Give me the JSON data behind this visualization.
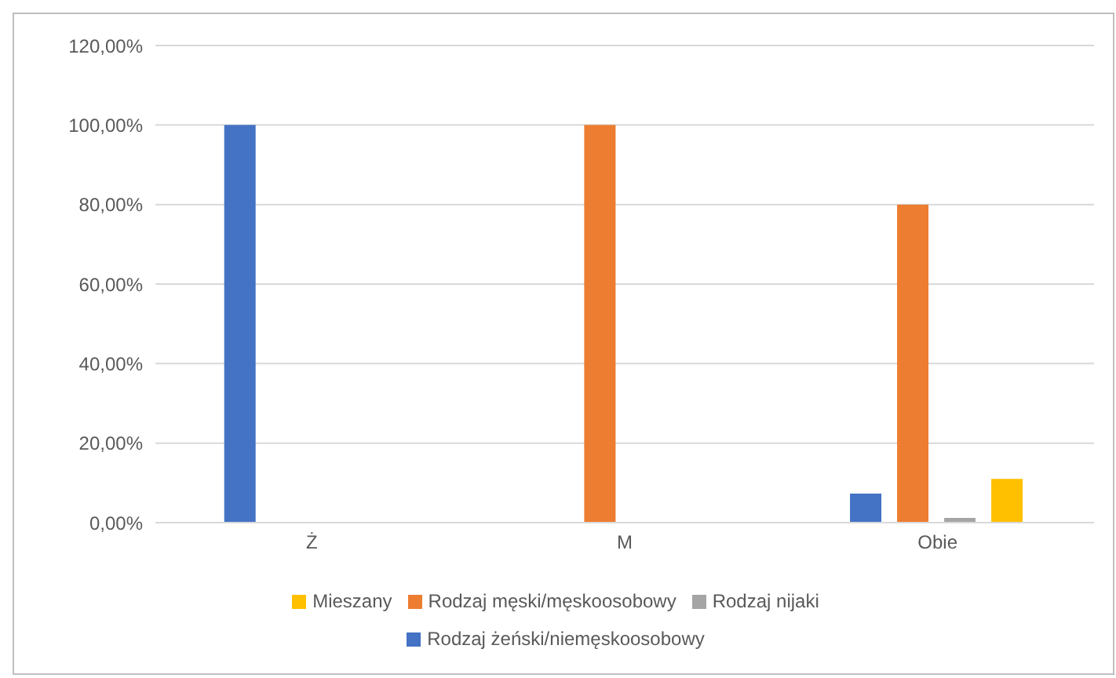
{
  "chart_data": {
    "type": "bar",
    "categories": [
      "Ż",
      "M",
      "Obie"
    ],
    "series": [
      {
        "name": "Rodzaj żeński/niemęskoosobowy",
        "color": "#4472c4",
        "values": [
          100,
          0,
          7.3
        ]
      },
      {
        "name": "Rodzaj męski/męskoosobowy",
        "color": "#ed7d31",
        "values": [
          0,
          100,
          80
        ]
      },
      {
        "name": "Rodzaj nijaki",
        "color": "#a5a5a5",
        "values": [
          0,
          0,
          1.2
        ]
      },
      {
        "name": "Mieszany",
        "color": "#ffc000",
        "values": [
          0,
          0,
          11
        ]
      }
    ],
    "ylim": [
      0,
      120
    ],
    "yticks": [
      {
        "value": 0,
        "label": "0,00%"
      },
      {
        "value": 20,
        "label": "20,00%"
      },
      {
        "value": 40,
        "label": "40,00%"
      },
      {
        "value": 60,
        "label": "60,00%"
      },
      {
        "value": 80,
        "label": "80,00%"
      },
      {
        "value": 100,
        "label": "100,00%"
      },
      {
        "value": 120,
        "label": "120,00%"
      }
    ],
    "grid": "y",
    "legend": "bottom"
  }
}
